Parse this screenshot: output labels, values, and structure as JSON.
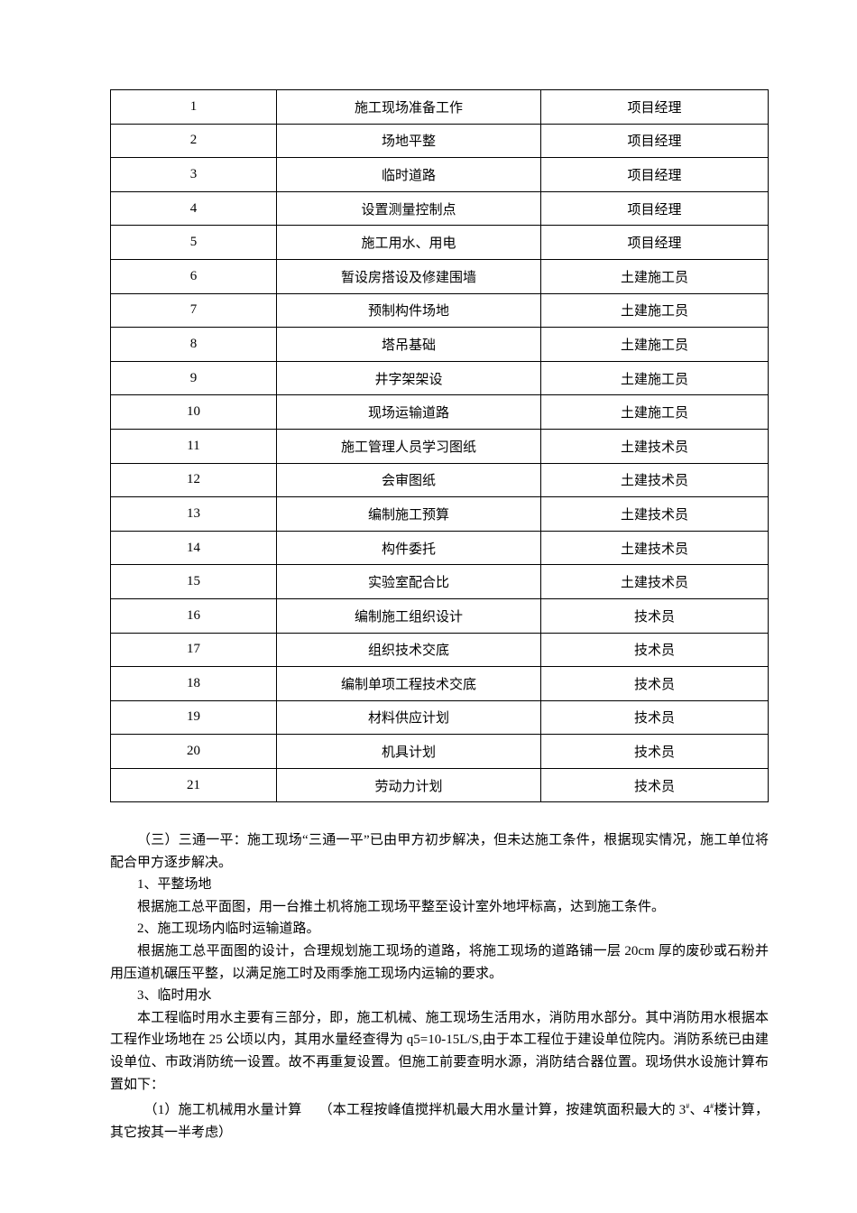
{
  "table": {
    "rows": [
      [
        "1",
        "施工现场准备工作",
        "项目经理"
      ],
      [
        "2",
        "场地平整",
        "项目经理"
      ],
      [
        "3",
        "临时道路",
        "项目经理"
      ],
      [
        "4",
        "设置测量控制点",
        "项目经理"
      ],
      [
        "5",
        "施工用水、用电",
        "项目经理"
      ],
      [
        "6",
        "暂设房搭设及修建围墙",
        "土建施工员"
      ],
      [
        "7",
        "预制构件场地",
        "土建施工员"
      ],
      [
        "8",
        "塔吊基础",
        "土建施工员"
      ],
      [
        "9",
        "井字架架设",
        "土建施工员"
      ],
      [
        "10",
        "现场运输道路",
        "土建施工员"
      ],
      [
        "11",
        "施工管理人员学习图纸",
        "土建技术员"
      ],
      [
        "12",
        "会审图纸",
        "土建技术员"
      ],
      [
        "13",
        "编制施工预算",
        "土建技术员"
      ],
      [
        "14",
        "构件委托",
        "土建技术员"
      ],
      [
        "15",
        "实验室配合比",
        "土建技术员"
      ],
      [
        "16",
        "编制施工组织设计",
        "技术员"
      ],
      [
        "17",
        "组织技术交底",
        "技术员"
      ],
      [
        "18",
        "编制单项工程技术交底",
        "技术员"
      ],
      [
        "19",
        "材料供应计划",
        "技术员"
      ],
      [
        "20",
        "机具计划",
        "技术员"
      ],
      [
        "21",
        "劳动力计划",
        "技术员"
      ]
    ]
  },
  "body": {
    "p1": "（三）三通一平：施工现场“三通一平”已由甲方初步解决，但未达施工条件，根据现实情况，施工单位将配合甲方逐步解决。",
    "h1": "1、平整场地",
    "p2": "根据施工总平面图，用一台推土机将施工现场平整至设计室外地坪标高，达到施工条件。",
    "h2": "2、施工现场内临时运输道路。",
    "p3": "根据施工总平面图的设计，合理规划施工现场的道路，将施工现场的道路铺一层 20cm 厚的废砂或石粉并用压道机碾压平整，以满足施工时及雨季施工现场内运输的要求。",
    "h3": "3、临时用水",
    "p4": "本工程临时用水主要有三部分，即，施工机械、施工现场生活用水，消防用水部分。其中消防用水根据本工程作业场地在 25 公顷以内，其用水量经查得为 q5=10-15L/S,由于本工程位于建设单位院内。消防系统已由建设单位、市政消防统一设置。故不再重复设置。但施工前要查明水源，消防结合器位置。现场供水设施计算布置如下：",
    "p5a": "（1）施工机械用水量计算　 （本工程按峰值搅拌机最大用水量计算，按建筑面积最大的 3",
    "sup1": "#",
    "p5b": "、4",
    "sup2": "#",
    "p5c": "楼计算，其它按其一半考虑）"
  }
}
